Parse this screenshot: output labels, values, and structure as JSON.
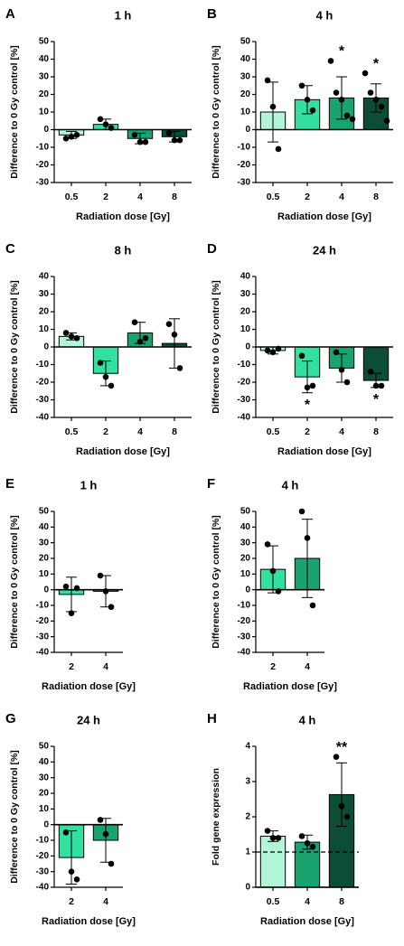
{
  "chart_data": [
    {
      "type": "bar",
      "panel": "A",
      "title": "1 h",
      "ylabel": "Difference to 0 Gy control [%]",
      "xlabel": "Radiation dose [Gy]",
      "categories": [
        "0.5",
        "2",
        "4",
        "8"
      ],
      "values": [
        -3,
        3,
        -5,
        -4
      ],
      "errors": [
        2,
        3,
        3,
        3
      ],
      "points": [
        [
          -5,
          -4,
          -3
        ],
        [
          6,
          3,
          1
        ],
        [
          -3,
          -7,
          -7
        ],
        [
          -2,
          -6,
          -6
        ]
      ],
      "colors": [
        "#b3f5d8",
        "#33e0a0",
        "#1aa370",
        "#0b4d35"
      ],
      "ylim": [
        -30,
        50
      ],
      "yticks": [
        -30,
        -20,
        -10,
        0,
        10,
        20,
        30,
        40,
        50
      ],
      "significance": [
        null,
        null,
        null,
        null
      ]
    },
    {
      "type": "bar",
      "panel": "B",
      "title": "4 h",
      "ylabel": "Difference to 0 Gy control [%]",
      "xlabel": "Radiation dose [Gy]",
      "categories": [
        "0.5",
        "2",
        "4",
        "8"
      ],
      "values": [
        10,
        17,
        18,
        18
      ],
      "errors": [
        17,
        8,
        12,
        8
      ],
      "points": [
        [
          28,
          13,
          -11
        ],
        [
          25,
          17,
          11
        ],
        [
          39,
          21,
          17,
          8,
          6
        ],
        [
          32,
          21,
          17,
          13,
          5
        ]
      ],
      "colors": [
        "#b3f5d8",
        "#33e0a0",
        "#1aa370",
        "#0b4d35"
      ],
      "ylim": [
        -30,
        50
      ],
      "yticks": [
        -30,
        -20,
        -10,
        0,
        10,
        20,
        30,
        40,
        50
      ],
      "significance": [
        null,
        null,
        "*",
        "*"
      ]
    },
    {
      "type": "bar",
      "panel": "C",
      "title": "8 h",
      "ylabel": "Difference to 0 Gy control [%]",
      "xlabel": "Radiation dose [Gy]",
      "categories": [
        "0.5",
        "2",
        "4",
        "8"
      ],
      "values": [
        6,
        -15,
        8,
        2
      ],
      "errors": [
        2,
        7,
        6,
        14
      ],
      "points": [
        [
          8,
          6,
          5
        ],
        [
          -9,
          -17,
          -22
        ],
        [
          14,
          3,
          5
        ],
        [
          13,
          7,
          -12
        ]
      ],
      "colors": [
        "#b3f5d8",
        "#33e0a0",
        "#1aa370",
        "#0b4d35"
      ],
      "ylim": [
        -40,
        40
      ],
      "yticks": [
        -40,
        -30,
        -20,
        -10,
        0,
        10,
        20,
        30,
        40
      ],
      "significance": [
        null,
        null,
        null,
        null
      ]
    },
    {
      "type": "bar",
      "panel": "D",
      "title": "24 h",
      "ylabel": "Difference to 0 Gy control [%]",
      "xlabel": "Radiation dose [Gy]",
      "categories": [
        "0.5",
        "2",
        "4",
        "8"
      ],
      "values": [
        -2,
        -17,
        -12,
        -19
      ],
      "errors": [
        2,
        9,
        8,
        4
      ],
      "points": [
        [
          -2,
          -3,
          -1
        ],
        [
          -5,
          -23,
          -22
        ],
        [
          -3,
          -13,
          -20
        ],
        [
          -14,
          -22,
          -22
        ]
      ],
      "colors": [
        "#b3f5d8",
        "#33e0a0",
        "#1aa370",
        "#0b4d35"
      ],
      "ylim": [
        -40,
        40
      ],
      "yticks": [
        -40,
        -30,
        -20,
        -10,
        0,
        10,
        20,
        30,
        40
      ],
      "significance": [
        null,
        "*",
        null,
        "*"
      ]
    },
    {
      "type": "bar",
      "panel": "E",
      "title": "1 h",
      "ylabel": "Difference to 0 Gy control [%]",
      "xlabel": "Radiation dose [Gy]",
      "categories": [
        "2",
        "4"
      ],
      "values": [
        -3,
        -1
      ],
      "errors": [
        11,
        10
      ],
      "points": [
        [
          2,
          -15,
          1
        ],
        [
          9,
          -1,
          -11
        ]
      ],
      "colors": [
        "#33e0a0",
        "#1aa370"
      ],
      "ylim": [
        -40,
        50
      ],
      "yticks": [
        -40,
        -30,
        -20,
        -10,
        0,
        10,
        20,
        30,
        40,
        50
      ],
      "significance": [
        null,
        null
      ]
    },
    {
      "type": "bar",
      "panel": "F",
      "title": "4 h",
      "ylabel": "Difference to 0 Gy control [%]",
      "xlabel": "Radiation dose [Gy]",
      "categories": [
        "2",
        "4"
      ],
      "values": [
        13,
        20
      ],
      "errors": [
        15,
        25
      ],
      "points": [
        [
          29,
          12,
          -1
        ],
        [
          50,
          33,
          -10
        ]
      ],
      "colors": [
        "#33e0a0",
        "#1aa370"
      ],
      "ylim": [
        -40,
        50
      ],
      "yticks": [
        -40,
        -30,
        -20,
        -10,
        0,
        10,
        20,
        30,
        40,
        50
      ],
      "significance": [
        null,
        null
      ]
    },
    {
      "type": "bar",
      "panel": "G",
      "title": "24 h",
      "ylabel": "Difference to 0 Gy control [%]",
      "xlabel": "Radiation dose [Gy]",
      "categories": [
        "2",
        "4"
      ],
      "values": [
        -21,
        -10
      ],
      "errors": [
        17,
        14
      ],
      "points": [
        [
          -5,
          -30,
          -35
        ],
        [
          3,
          -6,
          -25
        ]
      ],
      "colors": [
        "#33e0a0",
        "#1aa370"
      ],
      "ylim": [
        -40,
        50
      ],
      "yticks": [
        -40,
        -30,
        -20,
        -10,
        0,
        10,
        20,
        30,
        40,
        50
      ],
      "significance": [
        null,
        null
      ]
    },
    {
      "type": "bar",
      "panel": "H",
      "title": "4 h",
      "ylabel": "Fold gene expression",
      "xlabel": "Radiation dose [Gy]",
      "categories": [
        "0.5",
        "4",
        "8"
      ],
      "values": [
        1.45,
        1.28,
        2.63
      ],
      "errors": [
        0.15,
        0.2,
        0.9
      ],
      "points": [
        [
          1.6,
          1.4,
          1.4
        ],
        [
          1.45,
          1.25,
          1.15
        ],
        [
          3.7,
          2.3,
          2.0
        ]
      ],
      "colors": [
        "#b3f5d8",
        "#1aa370",
        "#0b4d35"
      ],
      "ylim": [
        0,
        4
      ],
      "yticks": [
        0,
        1,
        2,
        3,
        4
      ],
      "reference_line": 1,
      "significance": [
        null,
        null,
        "**"
      ]
    }
  ]
}
